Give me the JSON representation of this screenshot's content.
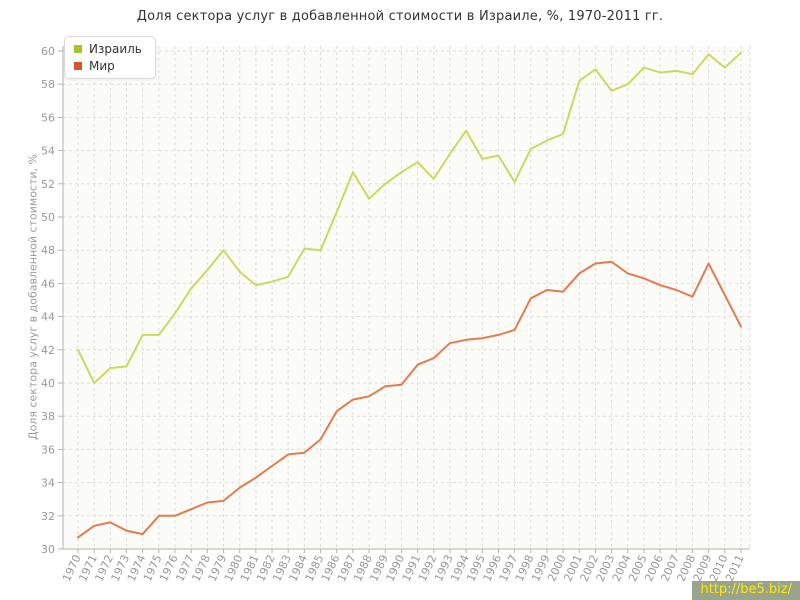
{
  "watermark": "http://be5.biz/",
  "chart_data": {
    "type": "line",
    "title": "Доля сектора услуг в добавленной стоимости в Израиле, %, 1970-2011 гг.",
    "xlabel": "",
    "ylabel": "Доля сектора услуг в добавленной стоимости, %",
    "ylim": [
      30,
      60
    ],
    "y_tick_step": 2,
    "grid": true,
    "grid_style": "dashed",
    "legend_position": "top-left",
    "categories": [
      "1970",
      "1971",
      "1972",
      "1973",
      "1974",
      "1975",
      "1976",
      "1977",
      "1978",
      "1979",
      "1980",
      "1981",
      "1982",
      "1983",
      "1984",
      "1985",
      "1986",
      "1987",
      "1988",
      "1989",
      "1990",
      "1991",
      "1992",
      "1993",
      "1994",
      "1995",
      "1996",
      "1997",
      "1998",
      "1999",
      "2000",
      "2001",
      "2002",
      "2003",
      "2004",
      "2005",
      "2006",
      "2007",
      "2008",
      "2009",
      "2010",
      "2011"
    ],
    "series": [
      {
        "name": "Израиль",
        "swatch_color": "#a9c323",
        "line_color": "#ccd95e",
        "values": [
          42.0,
          40.0,
          40.9,
          41.0,
          42.9,
          42.9,
          44.2,
          45.7,
          46.8,
          48.0,
          46.7,
          45.9,
          46.1,
          46.4,
          48.1,
          48.0,
          50.3,
          52.7,
          51.1,
          52.0,
          52.7,
          53.3,
          52.3,
          53.8,
          55.2,
          53.5,
          53.7,
          52.1,
          54.1,
          54.6,
          55.0,
          58.2,
          58.9,
          57.6,
          58.0,
          59.0,
          58.7,
          58.8,
          58.6,
          59.8,
          59.0,
          59.9
        ]
      },
      {
        "name": "Мир",
        "swatch_color": "#dd5226",
        "line_color": "#e47b4f",
        "values": [
          30.7,
          31.4,
          31.6,
          31.1,
          30.9,
          32.0,
          32.0,
          32.4,
          32.8,
          32.9,
          33.7,
          34.3,
          35.0,
          35.7,
          35.8,
          36.6,
          38.3,
          39.0,
          39.2,
          39.8,
          39.9,
          41.1,
          41.5,
          42.4,
          42.6,
          42.7,
          42.9,
          43.2,
          45.1,
          45.6,
          45.5,
          46.6,
          47.2,
          47.3,
          46.6,
          46.3,
          45.9,
          45.6,
          45.2,
          47.2,
          45.3,
          43.4
        ]
      }
    ],
    "style": {
      "grid_color": "#dedede",
      "axis_color": "#b3b3b3",
      "tick_label_color": "#999999",
      "title_color": "#333333",
      "plot_bg": "#fbfbf8",
      "watermark_bg": "#98a58c",
      "watermark_text": "#ffe60a"
    }
  }
}
